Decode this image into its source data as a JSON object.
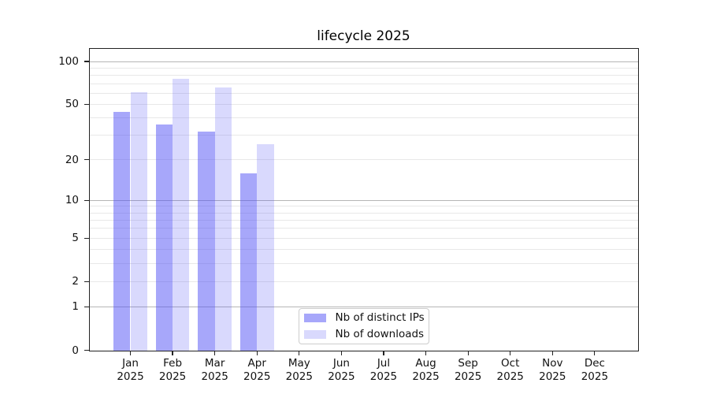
{
  "title": "lifecycle 2025",
  "colors": {
    "bar_distinct_ips": "rgba(75,75,245,0.49)",
    "bar_downloads": "rgba(75,75,245,0.21)",
    "major_gridline": "#b6b6b6",
    "minor_gridline": "#e8e8e8",
    "axis": "#222222",
    "legend_border": "#cccccc"
  },
  "chart_data": {
    "type": "bar",
    "title": "lifecycle 2025",
    "categories": [
      "Jan",
      "Feb",
      "Mar",
      "Apr",
      "May",
      "Jun",
      "Jul",
      "Aug",
      "Sep",
      "Oct",
      "Nov",
      "Dec"
    ],
    "year": "2025",
    "series": [
      {
        "name": "Nb of distinct IPs",
        "color": "rgba(75,75,245,0.49)",
        "values": [
          44,
          36,
          32,
          16,
          null,
          null,
          null,
          null,
          null,
          null,
          null,
          null
        ]
      },
      {
        "name": "Nb of downloads",
        "color": "rgba(75,75,245,0.21)",
        "values": [
          61,
          76,
          66,
          26,
          null,
          null,
          null,
          null,
          null,
          null,
          null,
          null
        ]
      }
    ],
    "y_axis": {
      "scale": "log1p",
      "ticks": [
        100,
        50,
        20,
        10,
        5,
        2,
        1,
        0
      ],
      "major_gridlines": [
        1,
        10,
        100
      ],
      "minor_gridlines": [
        2,
        3,
        4,
        5,
        6,
        7,
        8,
        9,
        20,
        30,
        40,
        50,
        60,
        70,
        80,
        90
      ],
      "ylim": [
        0,
        123
      ]
    },
    "grid": "both",
    "legend": {
      "position": "lower-center-left",
      "items": [
        "Nb of distinct IPs",
        "Nb of downloads"
      ]
    }
  }
}
